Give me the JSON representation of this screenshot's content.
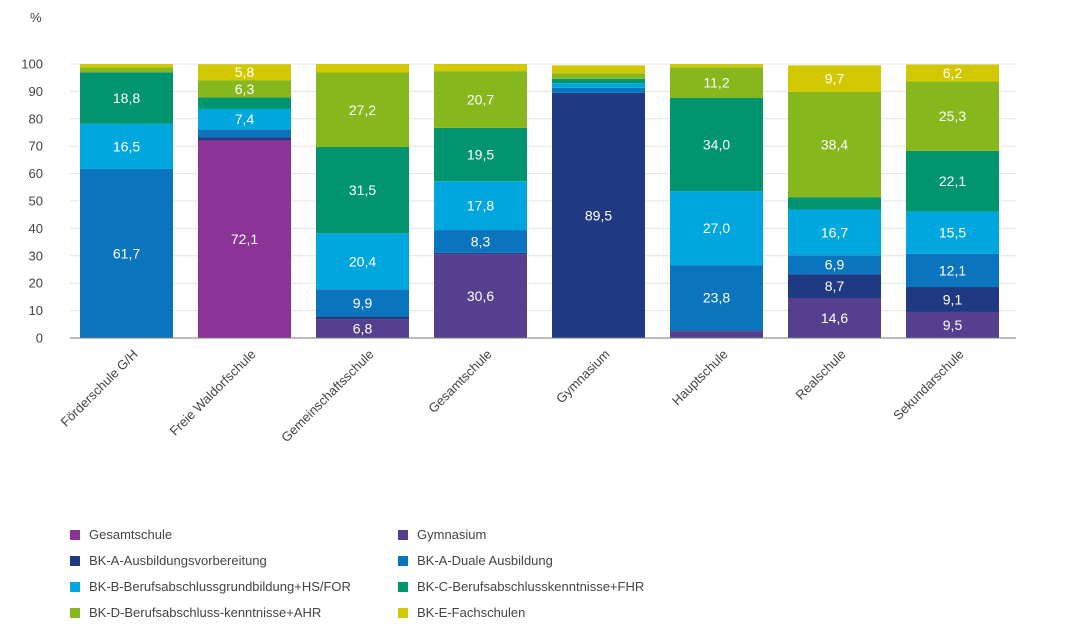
{
  "chart_data": {
    "type": "bar",
    "stacked": true,
    "ylabel": "%",
    "ylim": [
      0,
      100
    ],
    "yticks": [
      0,
      10,
      20,
      30,
      40,
      50,
      60,
      70,
      80,
      90,
      100
    ],
    "grid": "horizontal",
    "categories": [
      "Förderschule G/H",
      "Freie Waldorfschule",
      "Gemeinschaftsschule",
      "Gesamtschule",
      "Gymnasium",
      "Hauptschule",
      "Realschule",
      "Sekundarschule"
    ],
    "series": [
      {
        "name": "Gesamtschule",
        "color": "#8b3397",
        "values": [
          0.0,
          72.1,
          0.0,
          0.0,
          0.0,
          0.0,
          0.0,
          0.0
        ]
      },
      {
        "name": "Gymnasium",
        "color": "#553f8e",
        "values": [
          0.0,
          0.0,
          6.8,
          30.6,
          0.0,
          2.5,
          14.6,
          9.5
        ]
      },
      {
        "name": "BK-A-Ausbildungsvorbereitung",
        "color": "#1f3a83",
        "values": [
          0.0,
          1.2,
          1.1,
          0.5,
          89.5,
          0.3,
          8.7,
          9.1
        ]
      },
      {
        "name": "BK-A-Duale Ausbildung",
        "color": "#0a74bf",
        "values": [
          61.7,
          2.9,
          9.9,
          8.3,
          1.8,
          23.8,
          6.9,
          12.1
        ]
      },
      {
        "name": "BK-B-Berufsabschlussgrundbildung+HS/FOR",
        "color": "#00a6de",
        "values": [
          16.5,
          7.4,
          20.4,
          17.8,
          1.7,
          27.0,
          16.7,
          15.5
        ]
      },
      {
        "name": "BK-C-Berufsabschlusskenntnisse+FHR",
        "color": "#00956e",
        "values": [
          18.8,
          4.2,
          31.5,
          19.5,
          1.6,
          34.0,
          4.5,
          22.1
        ]
      },
      {
        "name": "BK-D-Berufsabschluss-kenntnisse+AHR",
        "color": "#86b81e",
        "values": [
          1.8,
          6.3,
          27.2,
          20.7,
          2.0,
          11.2,
          38.4,
          25.3
        ]
      },
      {
        "name": "BK-E-Fachschulen",
        "color": "#d2c800",
        "values": [
          1.2,
          5.8,
          3.1,
          2.6,
          2.9,
          1.2,
          9.7,
          6.2
        ]
      }
    ],
    "data_labels": [
      {
        "cat": 0,
        "series": 3,
        "text": "61,7"
      },
      {
        "cat": 0,
        "series": 4,
        "text": "16,5"
      },
      {
        "cat": 0,
        "series": 5,
        "text": "18,8"
      },
      {
        "cat": 1,
        "series": 0,
        "text": "72,1"
      },
      {
        "cat": 1,
        "series": 4,
        "text": "7,4"
      },
      {
        "cat": 1,
        "series": 6,
        "text": "6,3"
      },
      {
        "cat": 1,
        "series": 7,
        "text": "5,8"
      },
      {
        "cat": 2,
        "series": 1,
        "text": "6,8"
      },
      {
        "cat": 2,
        "series": 3,
        "text": "9,9"
      },
      {
        "cat": 2,
        "series": 4,
        "text": "20,4"
      },
      {
        "cat": 2,
        "series": 5,
        "text": "31,5"
      },
      {
        "cat": 2,
        "series": 6,
        "text": "27,2"
      },
      {
        "cat": 3,
        "series": 1,
        "text": "30,6"
      },
      {
        "cat": 3,
        "series": 3,
        "text": "8,3"
      },
      {
        "cat": 3,
        "series": 4,
        "text": "17,8"
      },
      {
        "cat": 3,
        "series": 5,
        "text": "19,5"
      },
      {
        "cat": 3,
        "series": 6,
        "text": "20,7"
      },
      {
        "cat": 4,
        "series": 2,
        "text": "89,5"
      },
      {
        "cat": 5,
        "series": 3,
        "text": "23,8"
      },
      {
        "cat": 5,
        "series": 4,
        "text": "27,0"
      },
      {
        "cat": 5,
        "series": 5,
        "text": "34,0"
      },
      {
        "cat": 5,
        "series": 6,
        "text": "11,2"
      },
      {
        "cat": 6,
        "series": 1,
        "text": "14,6"
      },
      {
        "cat": 6,
        "series": 2,
        "text": "8,7"
      },
      {
        "cat": 6,
        "series": 3,
        "text": "6,9"
      },
      {
        "cat": 6,
        "series": 4,
        "text": "16,7"
      },
      {
        "cat": 6,
        "series": 6,
        "text": "38,4"
      },
      {
        "cat": 6,
        "series": 7,
        "text": "9,7"
      },
      {
        "cat": 7,
        "series": 1,
        "text": "9,5"
      },
      {
        "cat": 7,
        "series": 2,
        "text": "9,1"
      },
      {
        "cat": 7,
        "series": 3,
        "text": "12,1"
      },
      {
        "cat": 7,
        "series": 4,
        "text": "15,5"
      },
      {
        "cat": 7,
        "series": 5,
        "text": "22,1"
      },
      {
        "cat": 7,
        "series": 6,
        "text": "25,3"
      },
      {
        "cat": 7,
        "series": 7,
        "text": "6,2"
      }
    ],
    "legend_position": "bottom-left"
  }
}
